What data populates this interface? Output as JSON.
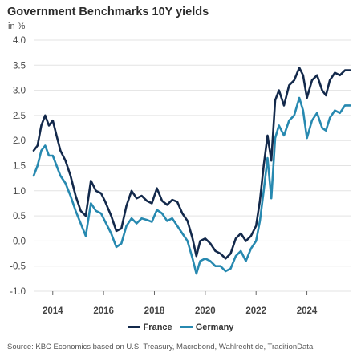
{
  "header": {
    "title": "Government Benchmarks 10Y yields",
    "unit": "in %"
  },
  "source": "Source: KBC Economics based on U.S. Treasury, Macrobond, Wahlrecht.de, TraditionData",
  "colors": {
    "france": "#13294b",
    "germany": "#2789b0",
    "grid": "#e3e3e3"
  },
  "chart_data": {
    "type": "line",
    "title": "Government Benchmarks 10Y yields",
    "ylabel": "in %",
    "ylim": [
      -1.0,
      4.0
    ],
    "yticks": [
      "4.0",
      "3.5",
      "3.0",
      "2.5",
      "2.0",
      "1.5",
      "1.0",
      "0.5",
      "0.0",
      "-0.5",
      "-1.0"
    ],
    "xticks": [
      "2014",
      "2016",
      "2018",
      "2020",
      "2022",
      "2024"
    ],
    "xlim": [
      2013.25,
      2025.75
    ],
    "grid": true,
    "legend_position": "bottom",
    "series": [
      {
        "name": "France",
        "x": [
          2013.25,
          2013.4,
          2013.55,
          2013.7,
          2013.85,
          2014.0,
          2014.15,
          2014.3,
          2014.5,
          2014.7,
          2014.9,
          2015.1,
          2015.3,
          2015.5,
          2015.7,
          2015.9,
          2016.05,
          2016.3,
          2016.5,
          2016.7,
          2016.9,
          2017.1,
          2017.3,
          2017.5,
          2017.7,
          2017.9,
          2018.1,
          2018.3,
          2018.5,
          2018.7,
          2018.9,
          2019.1,
          2019.3,
          2019.5,
          2019.65,
          2019.8,
          2020.0,
          2020.2,
          2020.4,
          2020.6,
          2020.8,
          2021.0,
          2021.2,
          2021.4,
          2021.6,
          2021.8,
          2022.0,
          2022.15,
          2022.3,
          2022.45,
          2022.6,
          2022.75,
          2022.9,
          2023.1,
          2023.3,
          2023.5,
          2023.7,
          2023.85,
          2024.0,
          2024.2,
          2024.4,
          2024.6,
          2024.75,
          2024.9,
          2025.1,
          2025.3,
          2025.5,
          2025.7
        ],
        "values": [
          1.8,
          1.9,
          2.3,
          2.5,
          2.3,
          2.4,
          2.1,
          1.8,
          1.6,
          1.3,
          0.9,
          0.6,
          0.5,
          1.2,
          1.0,
          0.95,
          0.8,
          0.5,
          0.2,
          0.25,
          0.7,
          1.0,
          0.85,
          0.9,
          0.8,
          0.75,
          1.05,
          0.8,
          0.72,
          0.82,
          0.78,
          0.55,
          0.4,
          0.05,
          -0.3,
          0.0,
          0.05,
          -0.05,
          -0.2,
          -0.25,
          -0.35,
          -0.25,
          0.05,
          0.15,
          0.0,
          0.1,
          0.3,
          0.8,
          1.5,
          2.1,
          1.6,
          2.8,
          3.0,
          2.7,
          3.1,
          3.2,
          3.45,
          3.3,
          2.85,
          3.2,
          3.3,
          3.0,
          2.9,
          3.2,
          3.35,
          3.3,
          3.4,
          3.4
        ]
      },
      {
        "name": "Germany",
        "x": [
          2013.25,
          2013.4,
          2013.55,
          2013.7,
          2013.85,
          2014.0,
          2014.15,
          2014.3,
          2014.5,
          2014.7,
          2014.9,
          2015.1,
          2015.3,
          2015.5,
          2015.7,
          2015.9,
          2016.05,
          2016.3,
          2016.5,
          2016.7,
          2016.9,
          2017.1,
          2017.3,
          2017.5,
          2017.7,
          2017.9,
          2018.1,
          2018.3,
          2018.5,
          2018.7,
          2018.9,
          2019.1,
          2019.3,
          2019.5,
          2019.65,
          2019.8,
          2020.0,
          2020.2,
          2020.4,
          2020.6,
          2020.8,
          2021.0,
          2021.2,
          2021.4,
          2021.6,
          2021.8,
          2022.0,
          2022.15,
          2022.3,
          2022.45,
          2022.6,
          2022.75,
          2022.9,
          2023.1,
          2023.3,
          2023.5,
          2023.7,
          2023.85,
          2024.0,
          2024.2,
          2024.4,
          2024.6,
          2024.75,
          2024.9,
          2025.1,
          2025.3,
          2025.5,
          2025.7
        ],
        "values": [
          1.3,
          1.5,
          1.8,
          1.9,
          1.7,
          1.7,
          1.5,
          1.3,
          1.15,
          0.9,
          0.6,
          0.35,
          0.1,
          0.75,
          0.6,
          0.55,
          0.4,
          0.15,
          -0.12,
          -0.05,
          0.3,
          0.45,
          0.35,
          0.45,
          0.42,
          0.38,
          0.62,
          0.55,
          0.4,
          0.45,
          0.3,
          0.15,
          0.0,
          -0.35,
          -0.65,
          -0.4,
          -0.35,
          -0.4,
          -0.5,
          -0.5,
          -0.6,
          -0.55,
          -0.3,
          -0.2,
          -0.4,
          -0.15,
          0.0,
          0.4,
          1.0,
          1.65,
          0.85,
          2.05,
          2.3,
          2.1,
          2.4,
          2.5,
          2.85,
          2.6,
          2.05,
          2.4,
          2.55,
          2.25,
          2.2,
          2.45,
          2.6,
          2.55,
          2.7,
          2.7
        ]
      }
    ]
  }
}
